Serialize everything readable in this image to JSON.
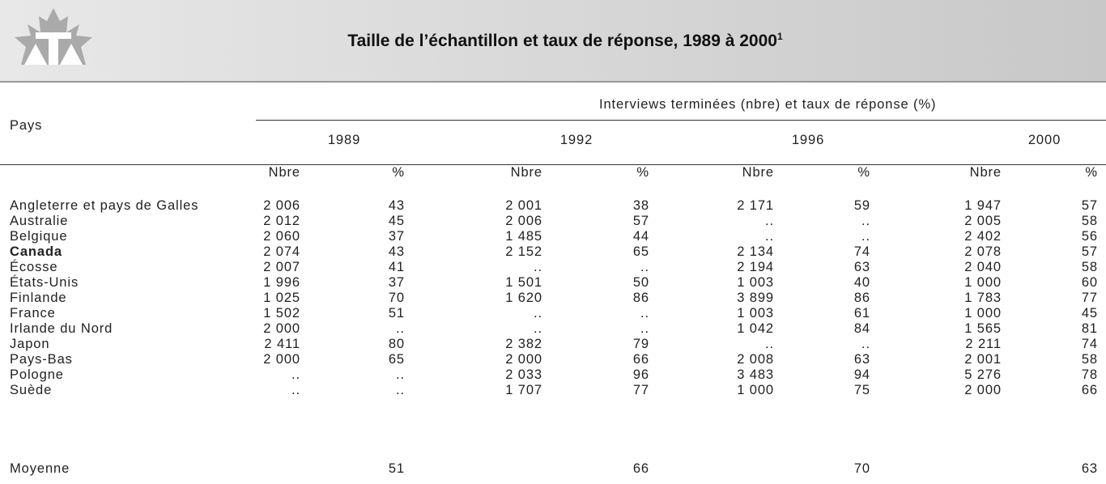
{
  "header": {
    "title": "Taille de l’échantillon et taux de réponse, 1989 à 2000",
    "title_note": "1"
  },
  "table": {
    "row_header": "Pays",
    "group_header": "Interviews terminées (nbre) et taux de réponse (%)",
    "years": [
      "1989",
      "1992",
      "1996",
      "2000"
    ],
    "subheaders": [
      "Nbre",
      "%"
    ],
    "rows": [
      [
        "Angleterre et pays de Galles",
        "2 006",
        "43",
        "2 001",
        "38",
        "2 171",
        "59",
        "1 947",
        "57"
      ],
      [
        "Australie",
        "2 012",
        "45",
        "2 006",
        "57",
        "..",
        "..",
        "2 005",
        "58"
      ],
      [
        "Belgique",
        "2 060",
        "37",
        "1 485",
        "44",
        "..",
        "..",
        "2 402",
        "56"
      ],
      [
        "Canada",
        "2 074",
        "43",
        "2 152",
        "65",
        "2 134",
        "74",
        "2 078",
        "57"
      ],
      [
        "Écosse",
        "2 007",
        "41",
        "..",
        "..",
        "2 194",
        "63",
        "2 040",
        "58"
      ],
      [
        "États-Unis",
        "1 996",
        "37",
        "1 501",
        "50",
        "1 003",
        "40",
        "1 000",
        "60"
      ],
      [
        "Finlande",
        "1 025",
        "70",
        "1 620",
        "86",
        "3 899",
        "86",
        "1 783",
        "77"
      ],
      [
        "France",
        "1 502",
        "51",
        "..",
        "..",
        "1 003",
        "61",
        "1 000",
        "45"
      ],
      [
        "Irlande du Nord",
        "2 000",
        "..",
        "..",
        "..",
        "1 042",
        "84",
        "1 565",
        "81"
      ],
      [
        "Japon",
        "2 411",
        "80",
        "2 382",
        "79",
        "..",
        "..",
        "2 211",
        "74"
      ],
      [
        "Pays-Bas",
        "2 000",
        "65",
        "2 000",
        "66",
        "2 008",
        "63",
        "2 001",
        "58"
      ],
      [
        "Pologne",
        "..",
        "..",
        "2 033",
        "96",
        "3 483",
        "94",
        "5 276",
        "78"
      ],
      [
        "Suède",
        "..",
        "..",
        "1 707",
        "77",
        "1 000",
        "75",
        "2 000",
        "66"
      ]
    ],
    "average": {
      "label": "Moyenne",
      "values": [
        "51",
        "66",
        "70",
        "63"
      ]
    }
  }
}
